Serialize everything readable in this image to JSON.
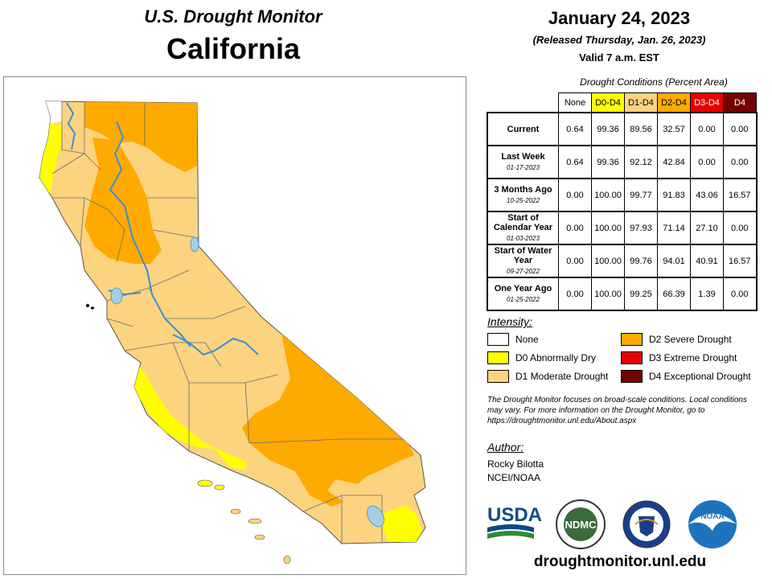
{
  "header": {
    "program": "U.S. Drought Monitor",
    "state": "California",
    "date": "January 24, 2023",
    "released": "(Released Thursday, Jan. 26, 2023)",
    "valid": "Valid 7 a.m. EST"
  },
  "table": {
    "caption": "Drought Conditions (Percent Area)",
    "columns": [
      "None",
      "D0-D4",
      "D1-D4",
      "D2-D4",
      "D3-D4",
      "D4"
    ],
    "rows": [
      {
        "label": "Current",
        "date": "",
        "values": [
          "0.64",
          "99.36",
          "89.56",
          "32.57",
          "0.00",
          "0.00"
        ]
      },
      {
        "label": "Last Week",
        "date": "01-17-2023",
        "values": [
          "0.64",
          "99.36",
          "92.12",
          "42.84",
          "0.00",
          "0.00"
        ]
      },
      {
        "label": "3 Months Ago",
        "date": "10-25-2022",
        "values": [
          "0.00",
          "100.00",
          "99.77",
          "91.83",
          "43.06",
          "16.57"
        ]
      },
      {
        "label": "Start of Calendar Year",
        "date": "01-03-2023",
        "values": [
          "0.00",
          "100.00",
          "97.93",
          "71.14",
          "27.10",
          "0.00"
        ]
      },
      {
        "label": "Start of Water Year",
        "date": "09-27-2022",
        "values": [
          "0.00",
          "100.00",
          "99.76",
          "94.01",
          "40.91",
          "16.57"
        ]
      },
      {
        "label": "One Year Ago",
        "date": "01-25-2022",
        "values": [
          "0.00",
          "100.00",
          "99.25",
          "66.39",
          "1.39",
          "0.00"
        ]
      }
    ]
  },
  "legend": {
    "title": "Intensity:",
    "items": [
      {
        "label": "None",
        "color": "#ffffff"
      },
      {
        "label": "D0 Abnormally Dry",
        "color": "#ffff00"
      },
      {
        "label": "D1 Moderate Drought",
        "color": "#fcd37f"
      },
      {
        "label": "D2 Severe Drought",
        "color": "#ffaa00"
      },
      {
        "label": "D3 Extreme Drought",
        "color": "#e60000"
      },
      {
        "label": "D4 Exceptional Drought",
        "color": "#730000"
      }
    ]
  },
  "note": "The Drought Monitor focuses on broad-scale conditions. Local conditions may vary. For more information on the Drought Monitor, go to https://droughtmonitor.unl.edu/About.aspx",
  "author": {
    "title": "Author:",
    "name": "Rocky Bilotta",
    "org": "NCEI/NOAA"
  },
  "logos": [
    {
      "name": "usda-logo",
      "text": "USDA"
    },
    {
      "name": "ndmc-logo",
      "text": "NDMC"
    },
    {
      "name": "commerce-seal",
      "text": ""
    },
    {
      "name": "noaa-logo",
      "text": "NOAA"
    }
  ],
  "website": "droughtmonitor.unl.edu",
  "colors": {
    "none": "#ffffff",
    "d0": "#ffff00",
    "d1": "#fcd37f",
    "d2": "#ffaa00",
    "d3": "#e60000",
    "d4": "#730000",
    "water": "#a6cee3",
    "river": "#3a8fd6"
  }
}
